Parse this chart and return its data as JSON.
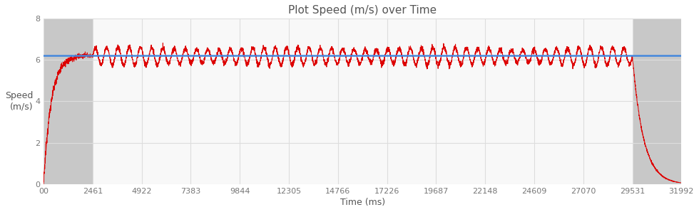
{
  "title": "Plot Speed (m/s) over Time",
  "xlabel": "Time (ms)",
  "ylabel": "Speed\n(m/s)",
  "ylim": [
    0,
    8
  ],
  "xlim": [
    0,
    31992
  ],
  "avg_speed": 6.22,
  "gray_region1_start": 0,
  "gray_region1_end": 2461,
  "gray_region2_start": 29531,
  "gray_region2_end": 31992,
  "accel_end": 2461,
  "decel_start": 29531,
  "total_end": 31992,
  "xtick_labels": [
    "00",
    "2461",
    "4922",
    "7383",
    "9844",
    "12305",
    "14766",
    "17226",
    "19687",
    "22148",
    "24609",
    "27070",
    "29531",
    "31992"
  ],
  "xtick_values": [
    0,
    2461,
    4922,
    7383,
    9844,
    12305,
    14766,
    17226,
    19687,
    22148,
    24609,
    27070,
    29531,
    31992
  ],
  "ytick_values": [
    0,
    2,
    4,
    6,
    8
  ],
  "line_color": "#dd0000",
  "avg_line_color": "#4488dd",
  "bg_color": "#ffffff",
  "gray_color": "#c8c8c8",
  "plot_bg": "#f8f8f8",
  "grid_color": "#dddddd",
  "title_color": "#555555",
  "axis_label_color": "#555555",
  "tick_color": "#777777",
  "osc_amplitude": 0.38,
  "osc_cycles": 48,
  "osc_trough_bias": -0.05,
  "noise_cruise": 0.06,
  "noise_accel": 0.12
}
